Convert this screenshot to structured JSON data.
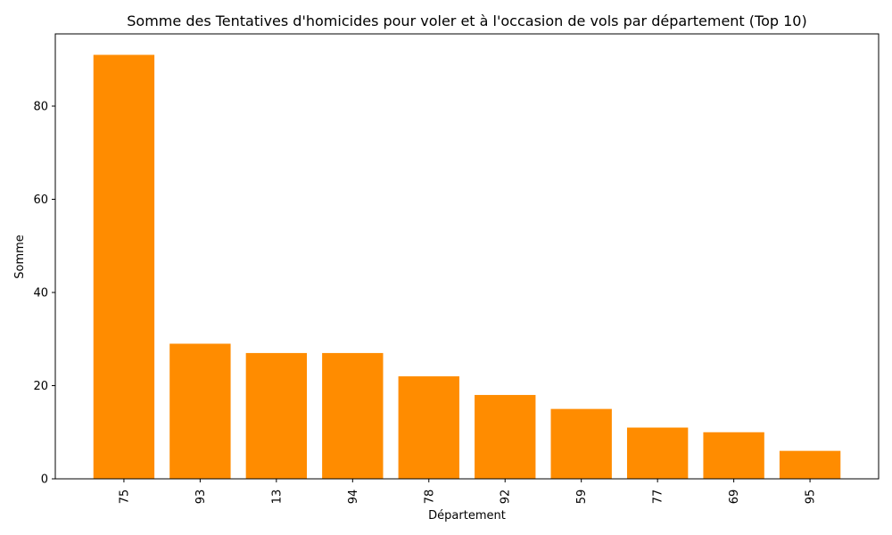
{
  "chart_data": {
    "type": "bar",
    "title": "Somme des Tentatives d'homicides pour voler et à l'occasion de vols par département (Top 10)",
    "xlabel": "Département",
    "ylabel": "Somme",
    "categories": [
      "75",
      "93",
      "13",
      "94",
      "78",
      "92",
      "59",
      "77",
      "69",
      "95"
    ],
    "values": [
      91,
      29,
      27,
      27,
      22,
      18,
      15,
      11,
      10,
      6
    ],
    "yticks": [
      0,
      20,
      40,
      60,
      80
    ],
    "ylim": [
      0,
      95.5
    ],
    "bar_color": "#ff8c00",
    "grid": false,
    "legend": "none"
  }
}
